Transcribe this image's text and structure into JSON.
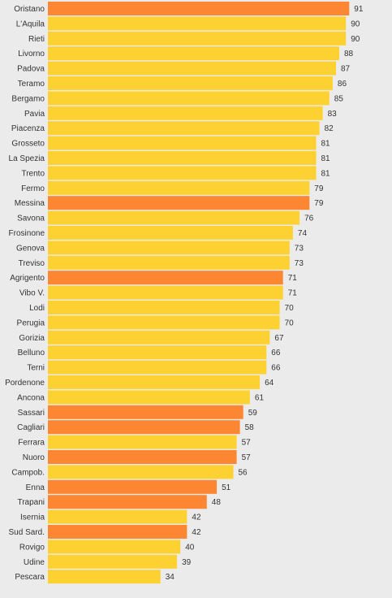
{
  "chart_data": {
    "type": "bar",
    "orientation": "horizontal",
    "title": "",
    "xlabel": "",
    "ylabel": "",
    "grid": false,
    "legend": "none",
    "xlim": [
      0,
      100
    ],
    "colors": {
      "default": "#fdd131",
      "highlight": "#fd8632",
      "background": "#ebebeb"
    },
    "categories": [
      "Oristano",
      "L'Aquila",
      "Rieti",
      "Livorno",
      "Padova",
      "Teramo",
      "Bergamo",
      "Pavia",
      "Piacenza",
      "Grosseto",
      "La Spezia",
      "Trento",
      "Fermo",
      "Messina",
      "Savona",
      "Frosinone",
      "Genova",
      "Treviso",
      "Agrigento",
      "Vibo V.",
      "Lodi",
      "Perugia",
      "Gorizia",
      "Belluno",
      "Terni",
      "Pordenone",
      "Ancona",
      "Sassari",
      "Cagliari",
      "Ferrara",
      "Nuoro",
      "Campob.",
      "Enna",
      "Trapani",
      "Isernia",
      "Sud Sard.",
      "Rovigo",
      "Udine",
      "Pescara"
    ],
    "values": [
      91,
      90,
      90,
      88,
      87,
      86,
      85,
      83,
      82,
      81,
      81,
      81,
      79,
      79,
      76,
      74,
      73,
      73,
      71,
      71,
      70,
      70,
      67,
      66,
      66,
      64,
      61,
      59,
      58,
      57,
      57,
      56,
      51,
      48,
      42,
      42,
      40,
      39,
      34
    ],
    "highlighted": [
      "Oristano",
      "Messina",
      "Agrigento",
      "Sassari",
      "Cagliari",
      "Nuoro",
      "Enna",
      "Trapani",
      "Sud Sard."
    ]
  }
}
